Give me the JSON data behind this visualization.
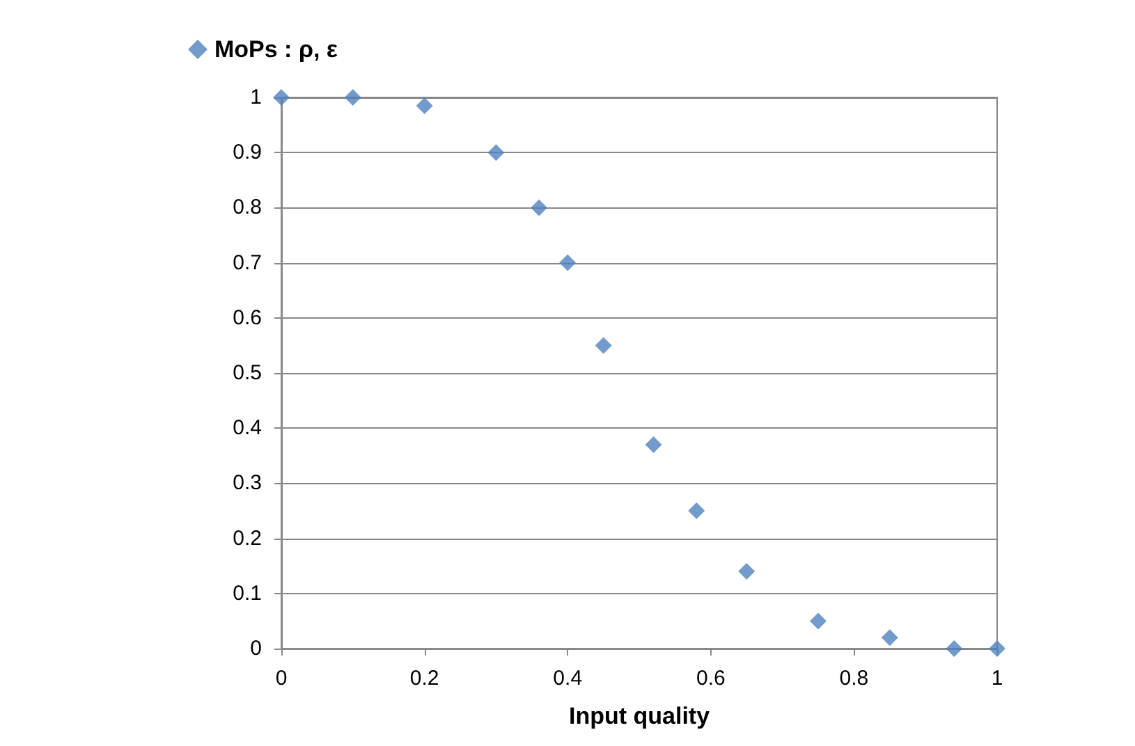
{
  "chart_data": {
    "type": "scatter",
    "xlabel": "Input quality",
    "series": [
      {
        "name": "MoPs : ρ, ε",
        "color": "#4f81bd",
        "x": [
          0,
          0.1,
          0.2,
          0.3,
          0.36,
          0.4,
          0.45,
          0.52,
          0.58,
          0.65,
          0.75,
          0.85,
          0.94,
          1
        ],
        "values": [
          1,
          1,
          0.985,
          0.9,
          0.8,
          0.7,
          0.55,
          0.37,
          0.25,
          0.14,
          0.05,
          0.02,
          0,
          0
        ]
      }
    ],
    "xlim": [
      0,
      1
    ],
    "xticks": [
      0,
      0.2,
      0.4,
      0.6,
      0.8,
      1
    ],
    "ylim": [
      0,
      1
    ],
    "yticks": [
      0,
      0.1,
      0.2,
      0.3,
      0.4,
      0.5,
      0.6,
      0.7,
      0.8,
      0.9,
      1
    ],
    "grid": "y",
    "legend": "top left",
    "marker": "diamond"
  }
}
